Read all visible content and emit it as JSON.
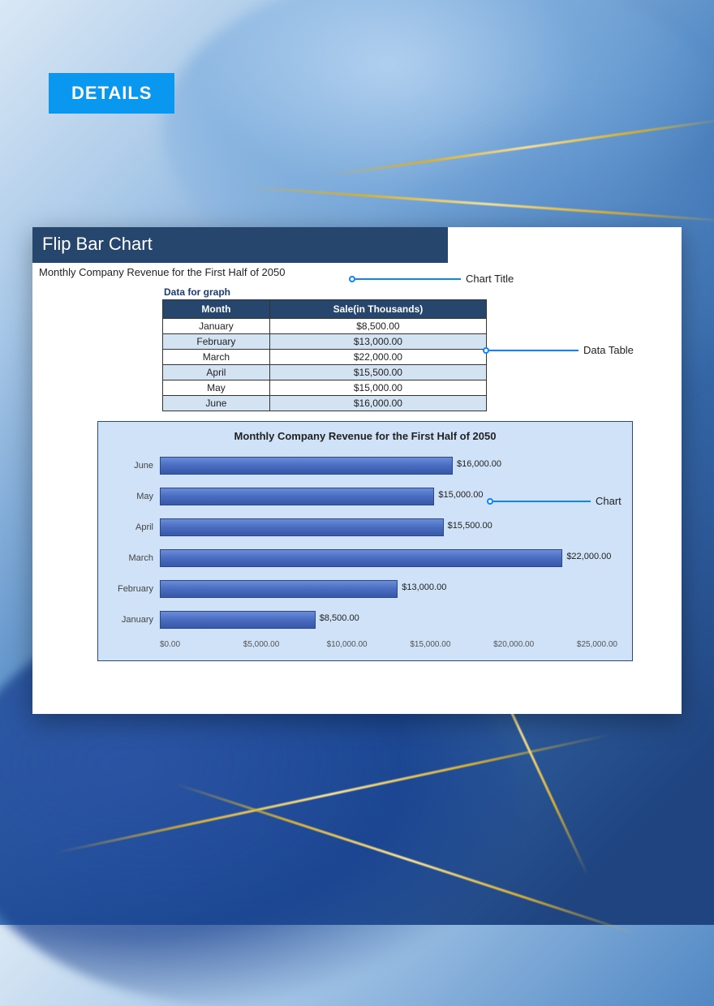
{
  "badge": {
    "text": "DETAILS",
    "bg": "#0a97f0"
  },
  "panel": {
    "header_bg": "#26466d",
    "header_text": "Flip Bar Chart",
    "chart_title": "Monthly Company Revenue for the First Half of 2050"
  },
  "callouts": {
    "chart_title": "Chart Title",
    "data_table": "Data Table",
    "chart": "Chart"
  },
  "table": {
    "caption": "Data for graph",
    "header_bg": "#26466d",
    "alt_row_bg": "#d3e3f2",
    "columns": [
      "Month",
      "Sale(in Thousands)"
    ],
    "rows": [
      [
        "January",
        "$8,500.00"
      ],
      [
        "February",
        "$13,000.00"
      ],
      [
        "March",
        "$22,000.00"
      ],
      [
        "April",
        "$15,500.00"
      ],
      [
        "May",
        "$15,000.00"
      ],
      [
        "June",
        "$16,000.00"
      ]
    ]
  },
  "chart": {
    "type": "horizontal-bar",
    "title": "Monthly Company Revenue for the First Half of 2050",
    "background_color": "#cfe2f7",
    "bar_gradient_top": "#6a8cd8",
    "bar_gradient_bottom": "#3858a8",
    "bar_border": "#2a4690",
    "xmin": 0,
    "xmax": 25000,
    "xtick_step": 5000,
    "xticks": [
      "$0.00",
      "$5,000.00",
      "$10,000.00",
      "$15,000.00",
      "$20,000.00",
      "$25,000.00"
    ],
    "series": [
      {
        "label": "June",
        "value": 16000,
        "display": "$16,000.00"
      },
      {
        "label": "May",
        "value": 15000,
        "display": "$15,000.00"
      },
      {
        "label": "April",
        "value": 15500,
        "display": "$15,500.00"
      },
      {
        "label": "March",
        "value": 22000,
        "display": "$22,000.00"
      },
      {
        "label": "February",
        "value": 13000,
        "display": "$13,000.00"
      },
      {
        "label": "January",
        "value": 8500,
        "display": "$8,500.00"
      }
    ],
    "title_fontsize": 13,
    "label_fontsize": 11
  }
}
